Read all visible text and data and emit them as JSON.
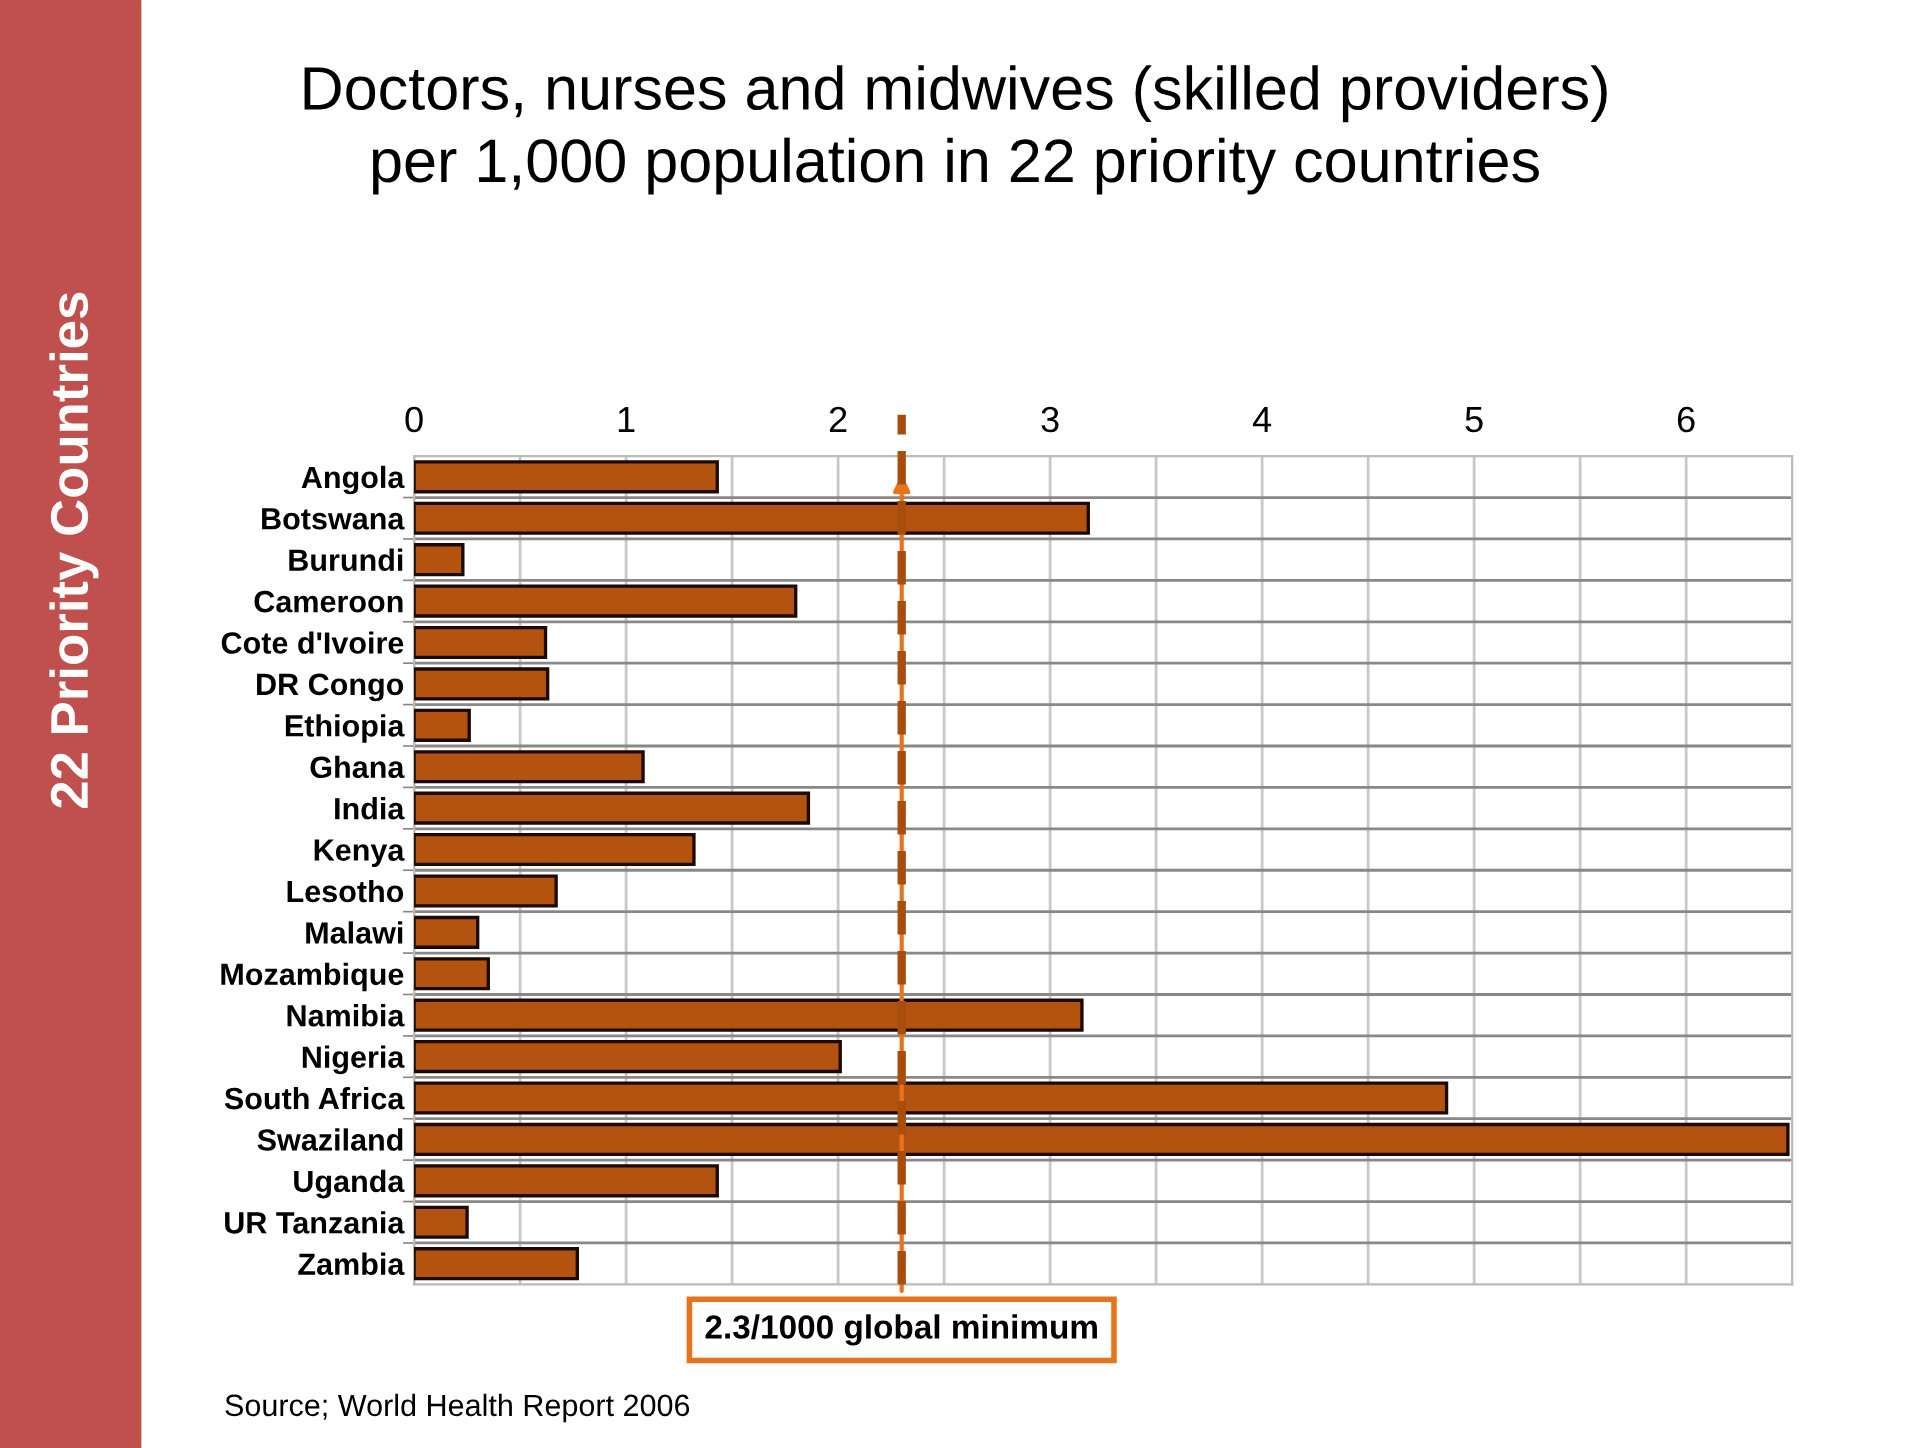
{
  "chart_data": {
    "type": "bar",
    "orientation": "horizontal",
    "title": "Doctors, nurses and midwives (skilled providers)\nper 1,000 population in 22 priority countries",
    "categories": [
      "Angola",
      "Botswana",
      "Burundi",
      "Cameroon",
      "Cote d'Ivoire",
      "DR Congo",
      "Ethiopia",
      "Ghana",
      "India",
      "Kenya",
      "Lesotho",
      "Malawi",
      "Mozambique",
      "Namibia",
      "Nigeria",
      "South Africa",
      "Swaziland",
      "Uganda",
      "UR Tanzania",
      "Zambia"
    ],
    "values": [
      1.43,
      3.18,
      0.23,
      1.8,
      0.62,
      0.63,
      0.26,
      1.08,
      1.86,
      1.32,
      0.67,
      0.3,
      0.35,
      3.15,
      2.01,
      4.87,
      6.48,
      1.43,
      0.25,
      0.77
    ],
    "color": "#b4530f",
    "xlim": [
      0,
      6.5
    ],
    "xticks": [
      0,
      {
        "value": 0.5,
        "label": null
      },
      1,
      {
        "value": 1.5,
        "label": null
      },
      2,
      {
        "value": 2.5,
        "label": null
      },
      3,
      {
        "value": 3.5,
        "label": null
      },
      4,
      {
        "value": 4.5,
        "label": null
      },
      5,
      {
        "value": 5.5,
        "label": null
      },
      6
    ],
    "grid": true,
    "ref_lines": [
      {
        "axis": "x",
        "value": 2.3,
        "label": "2.3/1000 global minimum",
        "color": "#a84e0c",
        "line_style": "dashed"
      }
    ],
    "annotations": [
      "Source; World Health Report 2006",
      "22 Priority Countries"
    ]
  }
}
